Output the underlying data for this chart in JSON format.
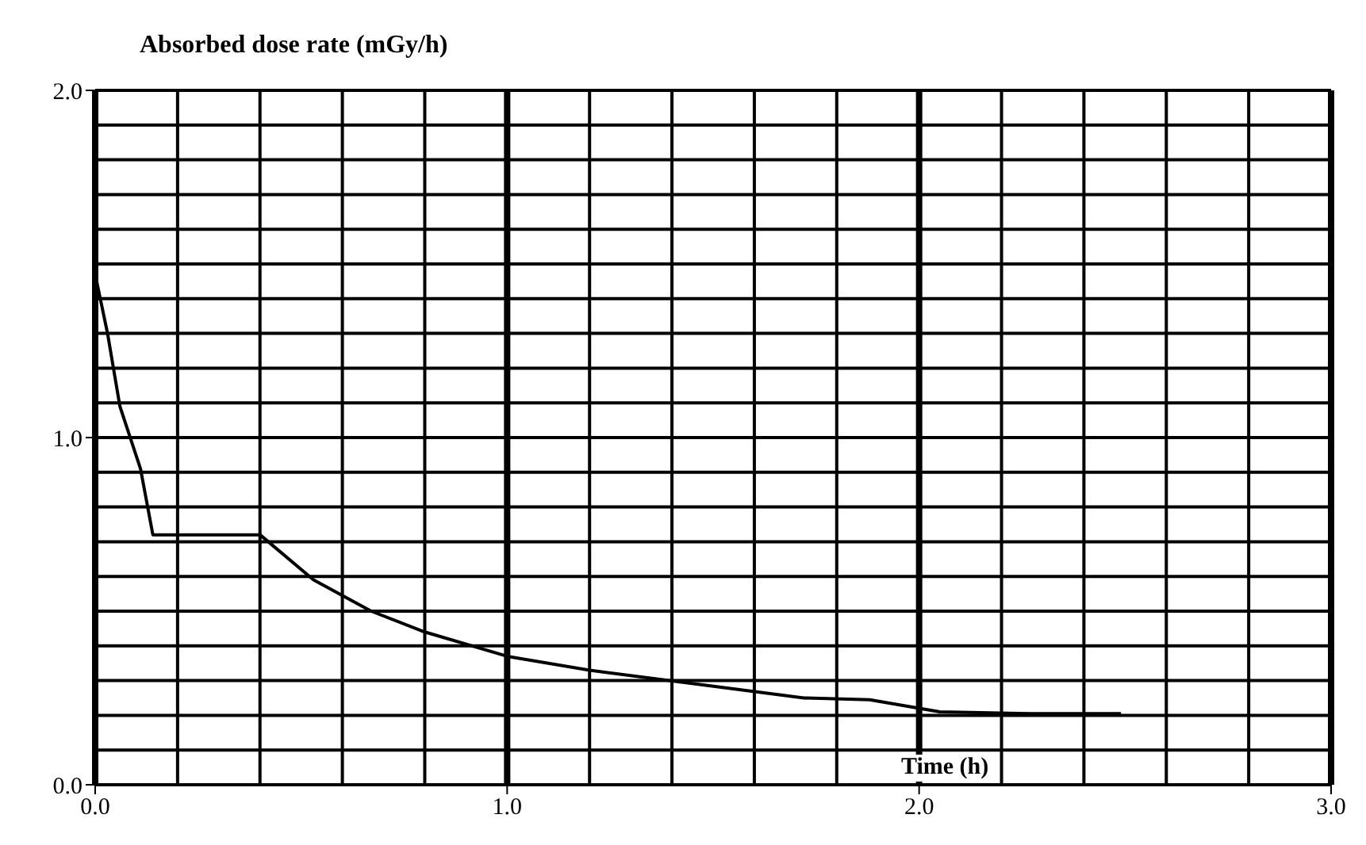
{
  "chart_data": {
    "type": "line",
    "title": "Absorbed dose rate (mGy/h)",
    "xlabel": "Time (h)",
    "x": [
      0,
      0.03,
      0.06,
      0.11,
      0.14,
      0.4,
      0.53,
      0.67,
      0.8,
      1.0,
      1.2,
      1.46,
      1.72,
      1.88,
      2.05,
      2.27,
      2.49
    ],
    "series": [
      {
        "color": "#000000",
        "values": [
          1.47,
          1.3,
          1.09,
          0.91,
          0.72,
          0.72,
          0.59,
          0.5,
          0.44,
          0.37,
          0.33,
          0.29,
          0.25,
          0.245,
          0.21,
          0.205,
          0.205
        ]
      }
    ],
    "xlim": [
      0,
      3
    ],
    "xticks": [
      {
        "value": 0,
        "label": "0.0"
      },
      {
        "value": 1,
        "label": "1.0"
      },
      {
        "value": 2,
        "label": "2.0"
      },
      {
        "value": 3,
        "label": "3.0"
      }
    ],
    "ylim": [
      0,
      2
    ],
    "yticks": [
      {
        "value": 0,
        "label": "0.0"
      },
      {
        "value": 1,
        "label": "1.0"
      },
      {
        "value": 2,
        "label": "2.0"
      }
    ],
    "grid": true,
    "marker": "none",
    "line_style": "solid"
  }
}
